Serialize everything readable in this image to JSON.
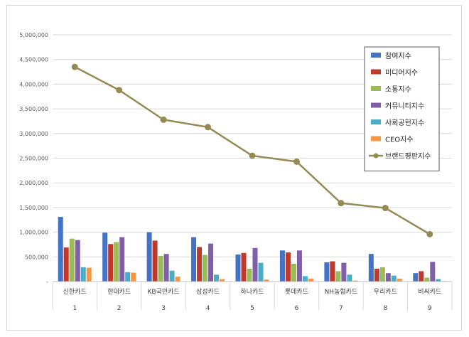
{
  "chart_data": {
    "type": "bar",
    "categories": [
      "신한카드",
      "현대카드",
      "KB국민카드",
      "삼성카드",
      "하나카드",
      "롯데카드",
      "NH농협카드",
      "우리카드",
      "비씨카드"
    ],
    "indices": [
      "1",
      "2",
      "3",
      "4",
      "5",
      "6",
      "7",
      "8",
      "9"
    ],
    "ylim": [
      0,
      5000000
    ],
    "yticks": [
      0,
      500000,
      1000000,
      1500000,
      2000000,
      2500000,
      3000000,
      3500000,
      4000000,
      4500000,
      5000000
    ],
    "ytick_labels": [
      "-",
      "500,000",
      "1,000,000",
      "1,500,000",
      "2,000,000",
      "2,500,000",
      "3,000,000",
      "3,500,000",
      "4,000,000",
      "4,500,000",
      "5,000,000"
    ],
    "grid": true,
    "legend_position": "top-right",
    "series": [
      {
        "name": "참여지수",
        "kind": "bar",
        "color": "#4472c4",
        "values": [
          1310000,
          990000,
          1000000,
          900000,
          550000,
          630000,
          390000,
          560000,
          170000
        ]
      },
      {
        "name": "미디어지수",
        "kind": "bar",
        "color": "#c0392b",
        "values": [
          690000,
          760000,
          830000,
          700000,
          580000,
          590000,
          410000,
          260000,
          210000
        ]
      },
      {
        "name": "소통지수",
        "kind": "bar",
        "color": "#9bbb59",
        "values": [
          870000,
          800000,
          520000,
          540000,
          260000,
          360000,
          210000,
          290000,
          80000
        ]
      },
      {
        "name": "커뮤니티지수",
        "kind": "bar",
        "color": "#7f5fa6",
        "values": [
          840000,
          900000,
          560000,
          770000,
          680000,
          630000,
          380000,
          170000,
          400000
        ]
      },
      {
        "name": "사회공헌지수",
        "kind": "bar",
        "color": "#4bacc6",
        "values": [
          290000,
          190000,
          220000,
          140000,
          380000,
          110000,
          140000,
          120000,
          50000
        ]
      },
      {
        "name": "CEO지수",
        "kind": "bar",
        "color": "#f79646",
        "values": [
          280000,
          180000,
          100000,
          50000,
          40000,
          60000,
          20000,
          60000,
          10000
        ]
      },
      {
        "name": "브랜드평판지수",
        "kind": "line",
        "color": "#948a54",
        "values": [
          4350000,
          3880000,
          3280000,
          3130000,
          2550000,
          2430000,
          1590000,
          1490000,
          960000
        ]
      }
    ]
  }
}
